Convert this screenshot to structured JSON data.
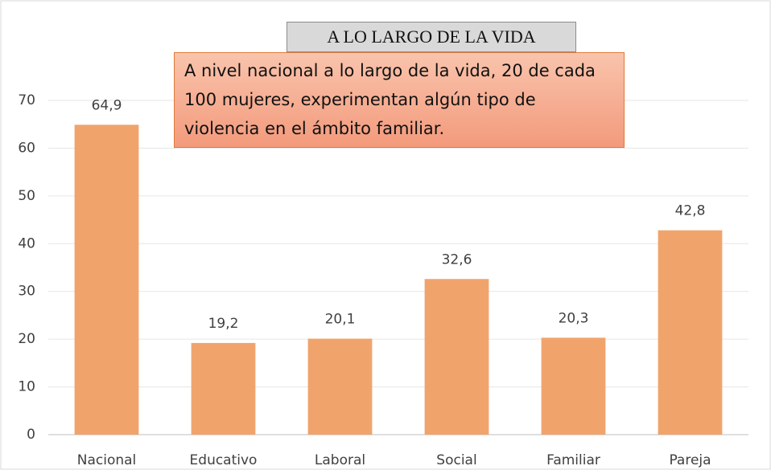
{
  "chart_data": {
    "type": "bar",
    "title": "A LO LARGO DE LA VIDA",
    "annotation": "A nivel nacional a lo largo de la vida, 20 de cada 100 mujeres, experimentan algún tipo de violencia en el ámbito familiar.",
    "categories": [
      "Nacional",
      "Educativo",
      "Laboral",
      "Social",
      "Familiar",
      "Pareja"
    ],
    "values": [
      64.9,
      19.2,
      20.1,
      32.6,
      20.3,
      42.8
    ],
    "value_labels": [
      "64,9",
      "19,2",
      "20,1",
      "32,6",
      "20,3",
      "42,8"
    ],
    "color": "#f0a46c",
    "ylim": [
      0,
      70
    ],
    "yticks": [
      0,
      10,
      20,
      30,
      40,
      50,
      60,
      70
    ],
    "grid": true
  }
}
